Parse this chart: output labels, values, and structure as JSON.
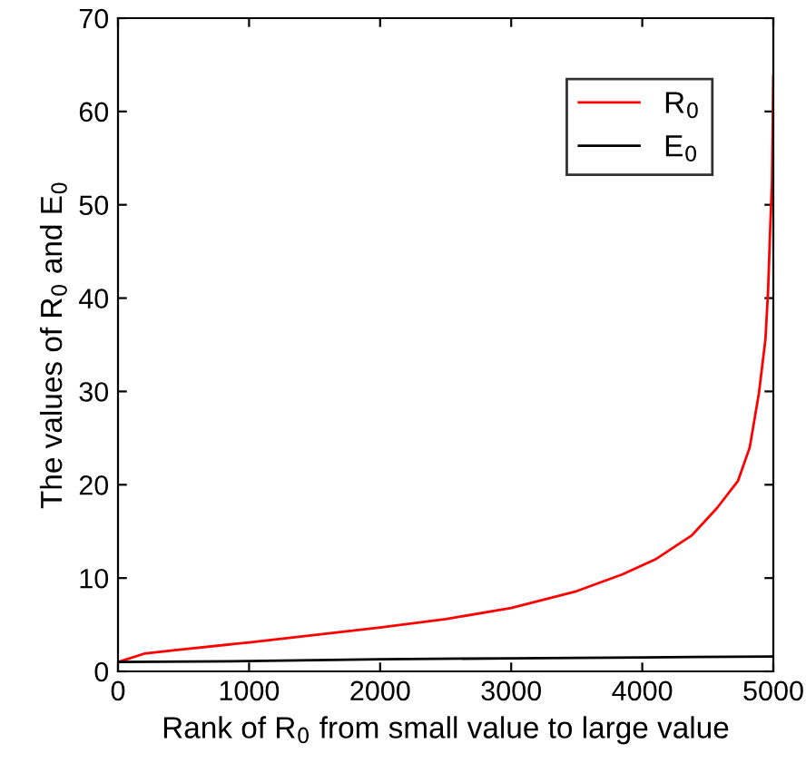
{
  "chart_data": {
    "type": "line",
    "xlabel": "Rank of R$_{0}$ from small value to large value",
    "ylabel": "The values of R$_{0}$ and E$_{0}$",
    "xlim": [
      0,
      5000
    ],
    "ylim": [
      0,
      70
    ],
    "xticks": [
      0,
      1000,
      2000,
      3000,
      4000,
      5000
    ],
    "yticks": [
      0,
      10,
      20,
      30,
      40,
      50,
      60,
      70
    ],
    "legend": "top right",
    "grid": false,
    "marker": "none",
    "line_style": "solid",
    "series": [
      {
        "name": "R$_{0}$",
        "color": "#ff0000",
        "x": [
          0,
          200,
          450,
          1000,
          2000,
          2500,
          3000,
          3500,
          3850,
          4100,
          4380,
          4570,
          4730,
          4820,
          4890,
          4940,
          4960,
          4975,
          4990,
          5000
        ],
        "values": [
          1.0,
          1.9,
          2.3,
          3.1,
          4.7,
          5.6,
          6.8,
          8.6,
          10.4,
          12.0,
          14.6,
          17.5,
          20.4,
          24.0,
          29.8,
          35.6,
          40.8,
          47,
          52.5,
          63.8
        ]
      },
      {
        "name": "E$_{0}$",
        "color": "#000000",
        "x": [
          0,
          1000,
          2000,
          3000,
          4000,
          5000
        ],
        "values": [
          1.0,
          1.1,
          1.3,
          1.4,
          1.5,
          1.6
        ]
      }
    ]
  }
}
